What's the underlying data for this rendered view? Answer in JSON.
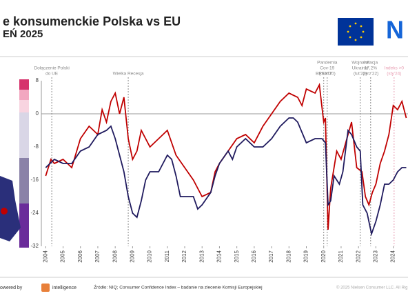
{
  "chart_data": {
    "type": "line",
    "title": "e konsumenckie Polska vs EU",
    "subtitle": "EŃ 2025",
    "logo": "N",
    "footer": {
      "powered": "owered by",
      "brand": "intelligence",
      "source": "Źródło: NIQ; Consumer  Confidence  Index  – badanie na zlecenie Komisji Europejskiej",
      "copyright": "© 2025 Nielsen Consumer LLC. All Rig"
    },
    "xlim": [
      2003.75,
      2024.85
    ],
    "xticks": [
      2004,
      2005,
      2006,
      2007,
      2008,
      2009,
      2010,
      2011,
      2012,
      2013,
      2014,
      2015,
      2016,
      2017,
      2018,
      2019,
      2020,
      2021,
      2022,
      2023,
      2024
    ],
    "ylim": [
      -32,
      8
    ],
    "yticks": [
      8,
      0,
      -8,
      -16,
      -24,
      -32
    ],
    "annotations": [
      {
        "x": 2004.35,
        "lines": [
          "Dołączenie Polski",
          "do UE"
        ],
        "color": "#888"
      },
      {
        "x": 2008.75,
        "lines": [
          "Wielka Recesja"
        ],
        "color": "#888"
      },
      {
        "x": 2020.0,
        "lines": [
          "BREXIT"
        ],
        "color": "#888"
      },
      {
        "x": 2020.2,
        "lines": [
          "Pandemia",
          "Cov-19",
          "(mar'20)"
        ],
        "color": "#888"
      },
      {
        "x": 2022.1,
        "lines": [
          "Wojna w",
          "Ukrainie",
          "(lut'22)"
        ],
        "color": "#888"
      },
      {
        "x": 2022.7,
        "lines": [
          "Inflacja",
          "17,2%",
          "(wrz'22)"
        ],
        "color": "#888"
      },
      {
        "x": 2024.05,
        "lines": [
          "Indeks >0",
          "(sty'24)"
        ],
        "color": "#e79bb0"
      }
    ],
    "series": [
      {
        "name": "Polska",
        "color": "#c00000",
        "x": [
          2004,
          2004.3,
          2004.5,
          2005,
          2005.5,
          2006,
          2006.5,
          2007,
          2007.25,
          2007.5,
          2007.75,
          2008,
          2008.25,
          2008.5,
          2008.75,
          2009,
          2009.25,
          2009.5,
          2010,
          2010.5,
          2011,
          2011.5,
          2012,
          2012.5,
          2012.75,
          2013,
          2013.5,
          2013.75,
          2014,
          2014.5,
          2015,
          2015.5,
          2016,
          2016.5,
          2017,
          2017.5,
          2018,
          2018.5,
          2018.75,
          2019,
          2019.5,
          2019.75,
          2020,
          2020.1,
          2020.25,
          2020.4,
          2020.75,
          2021,
          2021.4,
          2021.6,
          2021.9,
          2022.2,
          2022.4,
          2022.6,
          2022.8,
          2023,
          2023.25,
          2023.5,
          2023.75,
          2024,
          2024.25,
          2024.5,
          2024.75
        ],
        "values": [
          -15,
          -11,
          -12,
          -11,
          -13,
          -6,
          -3,
          -5,
          1,
          -2,
          3,
          5,
          0,
          4,
          -6,
          -11,
          -9,
          -4,
          -8,
          -6,
          -4,
          -10,
          -13,
          -16,
          -18,
          -20,
          -19,
          -14,
          -12,
          -9,
          -6,
          -5,
          -7,
          -3,
          0,
          3,
          5,
          4,
          2,
          6,
          5,
          7,
          -2,
          -1,
          -28,
          -18,
          -9,
          -11,
          -5,
          -2,
          -13,
          -14,
          -20,
          -22,
          -19,
          -17,
          -12,
          -9,
          -5,
          2,
          1,
          3,
          -1
        ]
      },
      {
        "name": "EU",
        "color": "#1f1a5e",
        "x": [
          2004,
          2004.5,
          2005,
          2005.5,
          2006,
          2006.5,
          2007,
          2007.5,
          2007.75,
          2008,
          2008.25,
          2008.5,
          2008.75,
          2009,
          2009.25,
          2009.5,
          2009.75,
          2010,
          2010.5,
          2011,
          2011.25,
          2011.5,
          2011.75,
          2012,
          2012.5,
          2012.75,
          2013,
          2013.5,
          2013.75,
          2014,
          2014.5,
          2014.75,
          2015,
          2015.5,
          2015.75,
          2016,
          2016.5,
          2017,
          2017.5,
          2018,
          2018.25,
          2018.5,
          2019,
          2019.5,
          2019.9,
          2020.1,
          2020.25,
          2020.4,
          2020.6,
          2020.9,
          2021.1,
          2021.4,
          2021.6,
          2021.9,
          2022.1,
          2022.25,
          2022.5,
          2022.75,
          2023,
          2023.25,
          2023.5,
          2023.75,
          2024,
          2024.25,
          2024.5,
          2024.75
        ],
        "values": [
          -13,
          -11,
          -12,
          -12,
          -9,
          -8,
          -5,
          -4,
          -3,
          -6,
          -10,
          -14,
          -20,
          -24,
          -25,
          -21,
          -16,
          -14,
          -14,
          -10,
          -11,
          -15,
          -20,
          -20,
          -20,
          -23,
          -22,
          -19,
          -15,
          -12,
          -9,
          -11,
          -8,
          -6,
          -7,
          -8,
          -8,
          -6,
          -3,
          -1,
          -1,
          -2,
          -7,
          -6,
          -6,
          -7,
          -22,
          -21,
          -15,
          -17,
          -14,
          -4,
          -5,
          -8,
          -9,
          -22,
          -24,
          -29,
          -26,
          -22,
          -17,
          -17,
          -16,
          -14,
          -13,
          -13
        ]
      }
    ]
  }
}
